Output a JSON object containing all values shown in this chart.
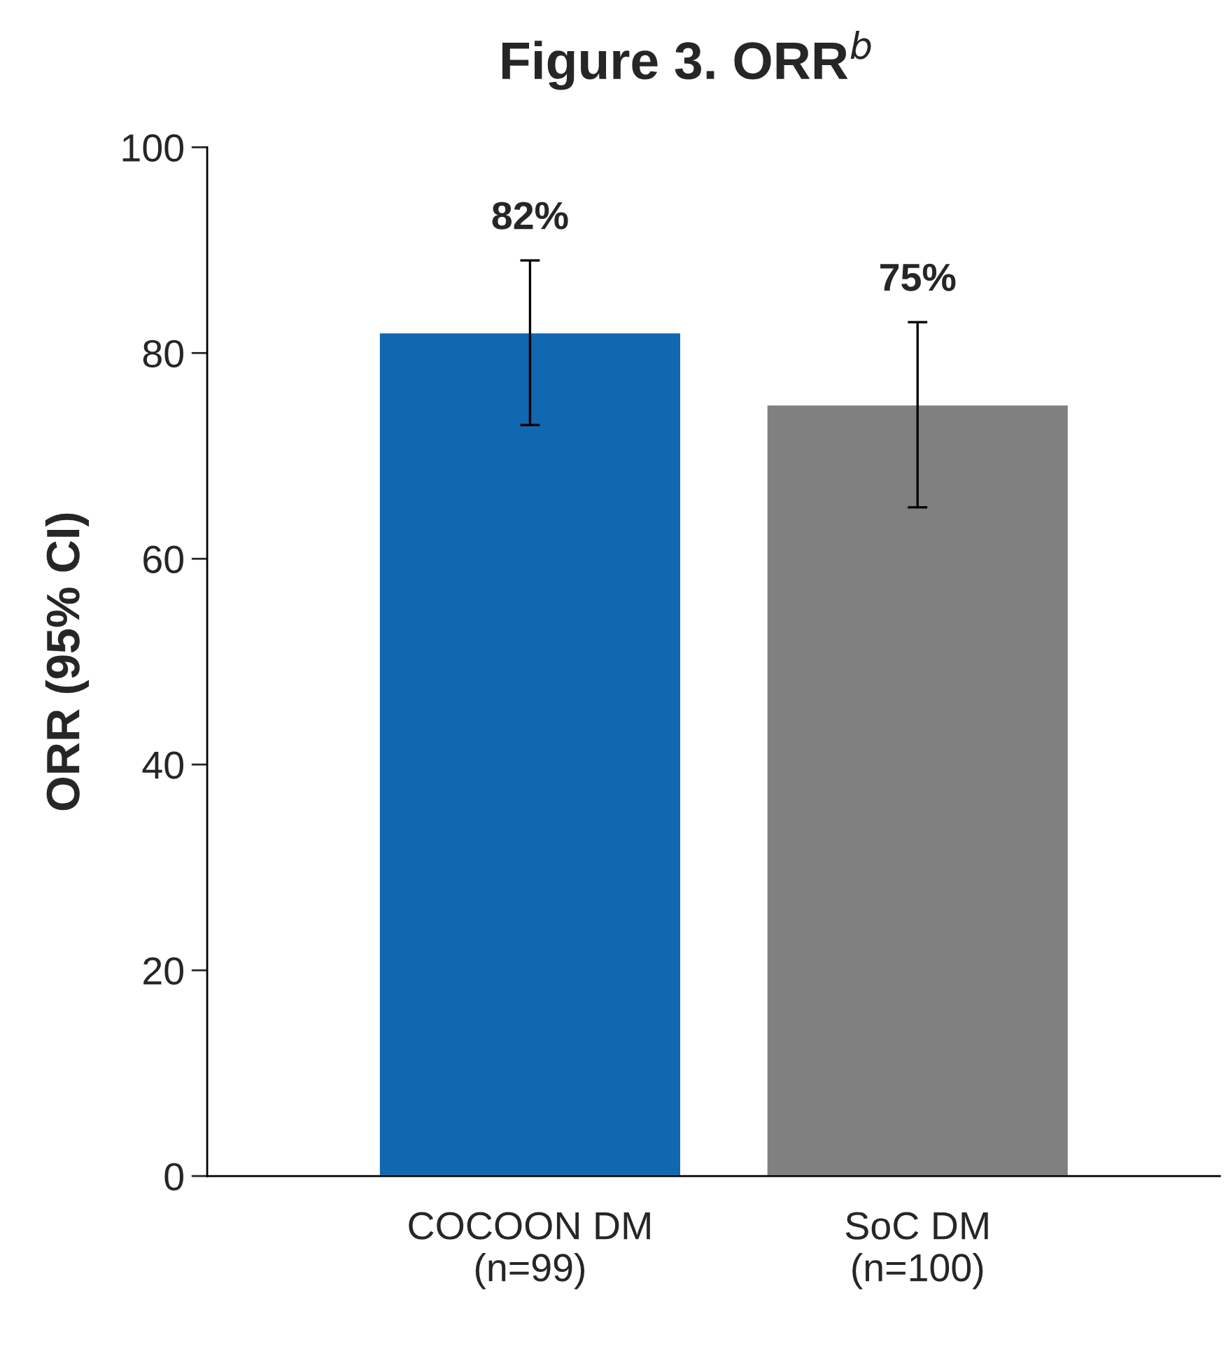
{
  "chart_data": {
    "type": "bar",
    "title": "Figure 3. ORR$^{b}$",
    "ylabel": "ORR (95% CI)",
    "categories": [
      "COCOON DM\n(n=99)",
      "SoC DM\n(n=100)"
    ],
    "values": [
      82,
      75
    ],
    "colors": [
      "#1068b0",
      "#808080"
    ],
    "errors": [
      [
        73,
        89
      ],
      [
        65,
        83
      ]
    ],
    "value_labels": [
      "82%",
      "75%"
    ],
    "ylim": [
      0,
      100
    ],
    "yticks": [
      0,
      20,
      40,
      60,
      80,
      100
    ],
    "grid": false,
    "legend": false
  }
}
